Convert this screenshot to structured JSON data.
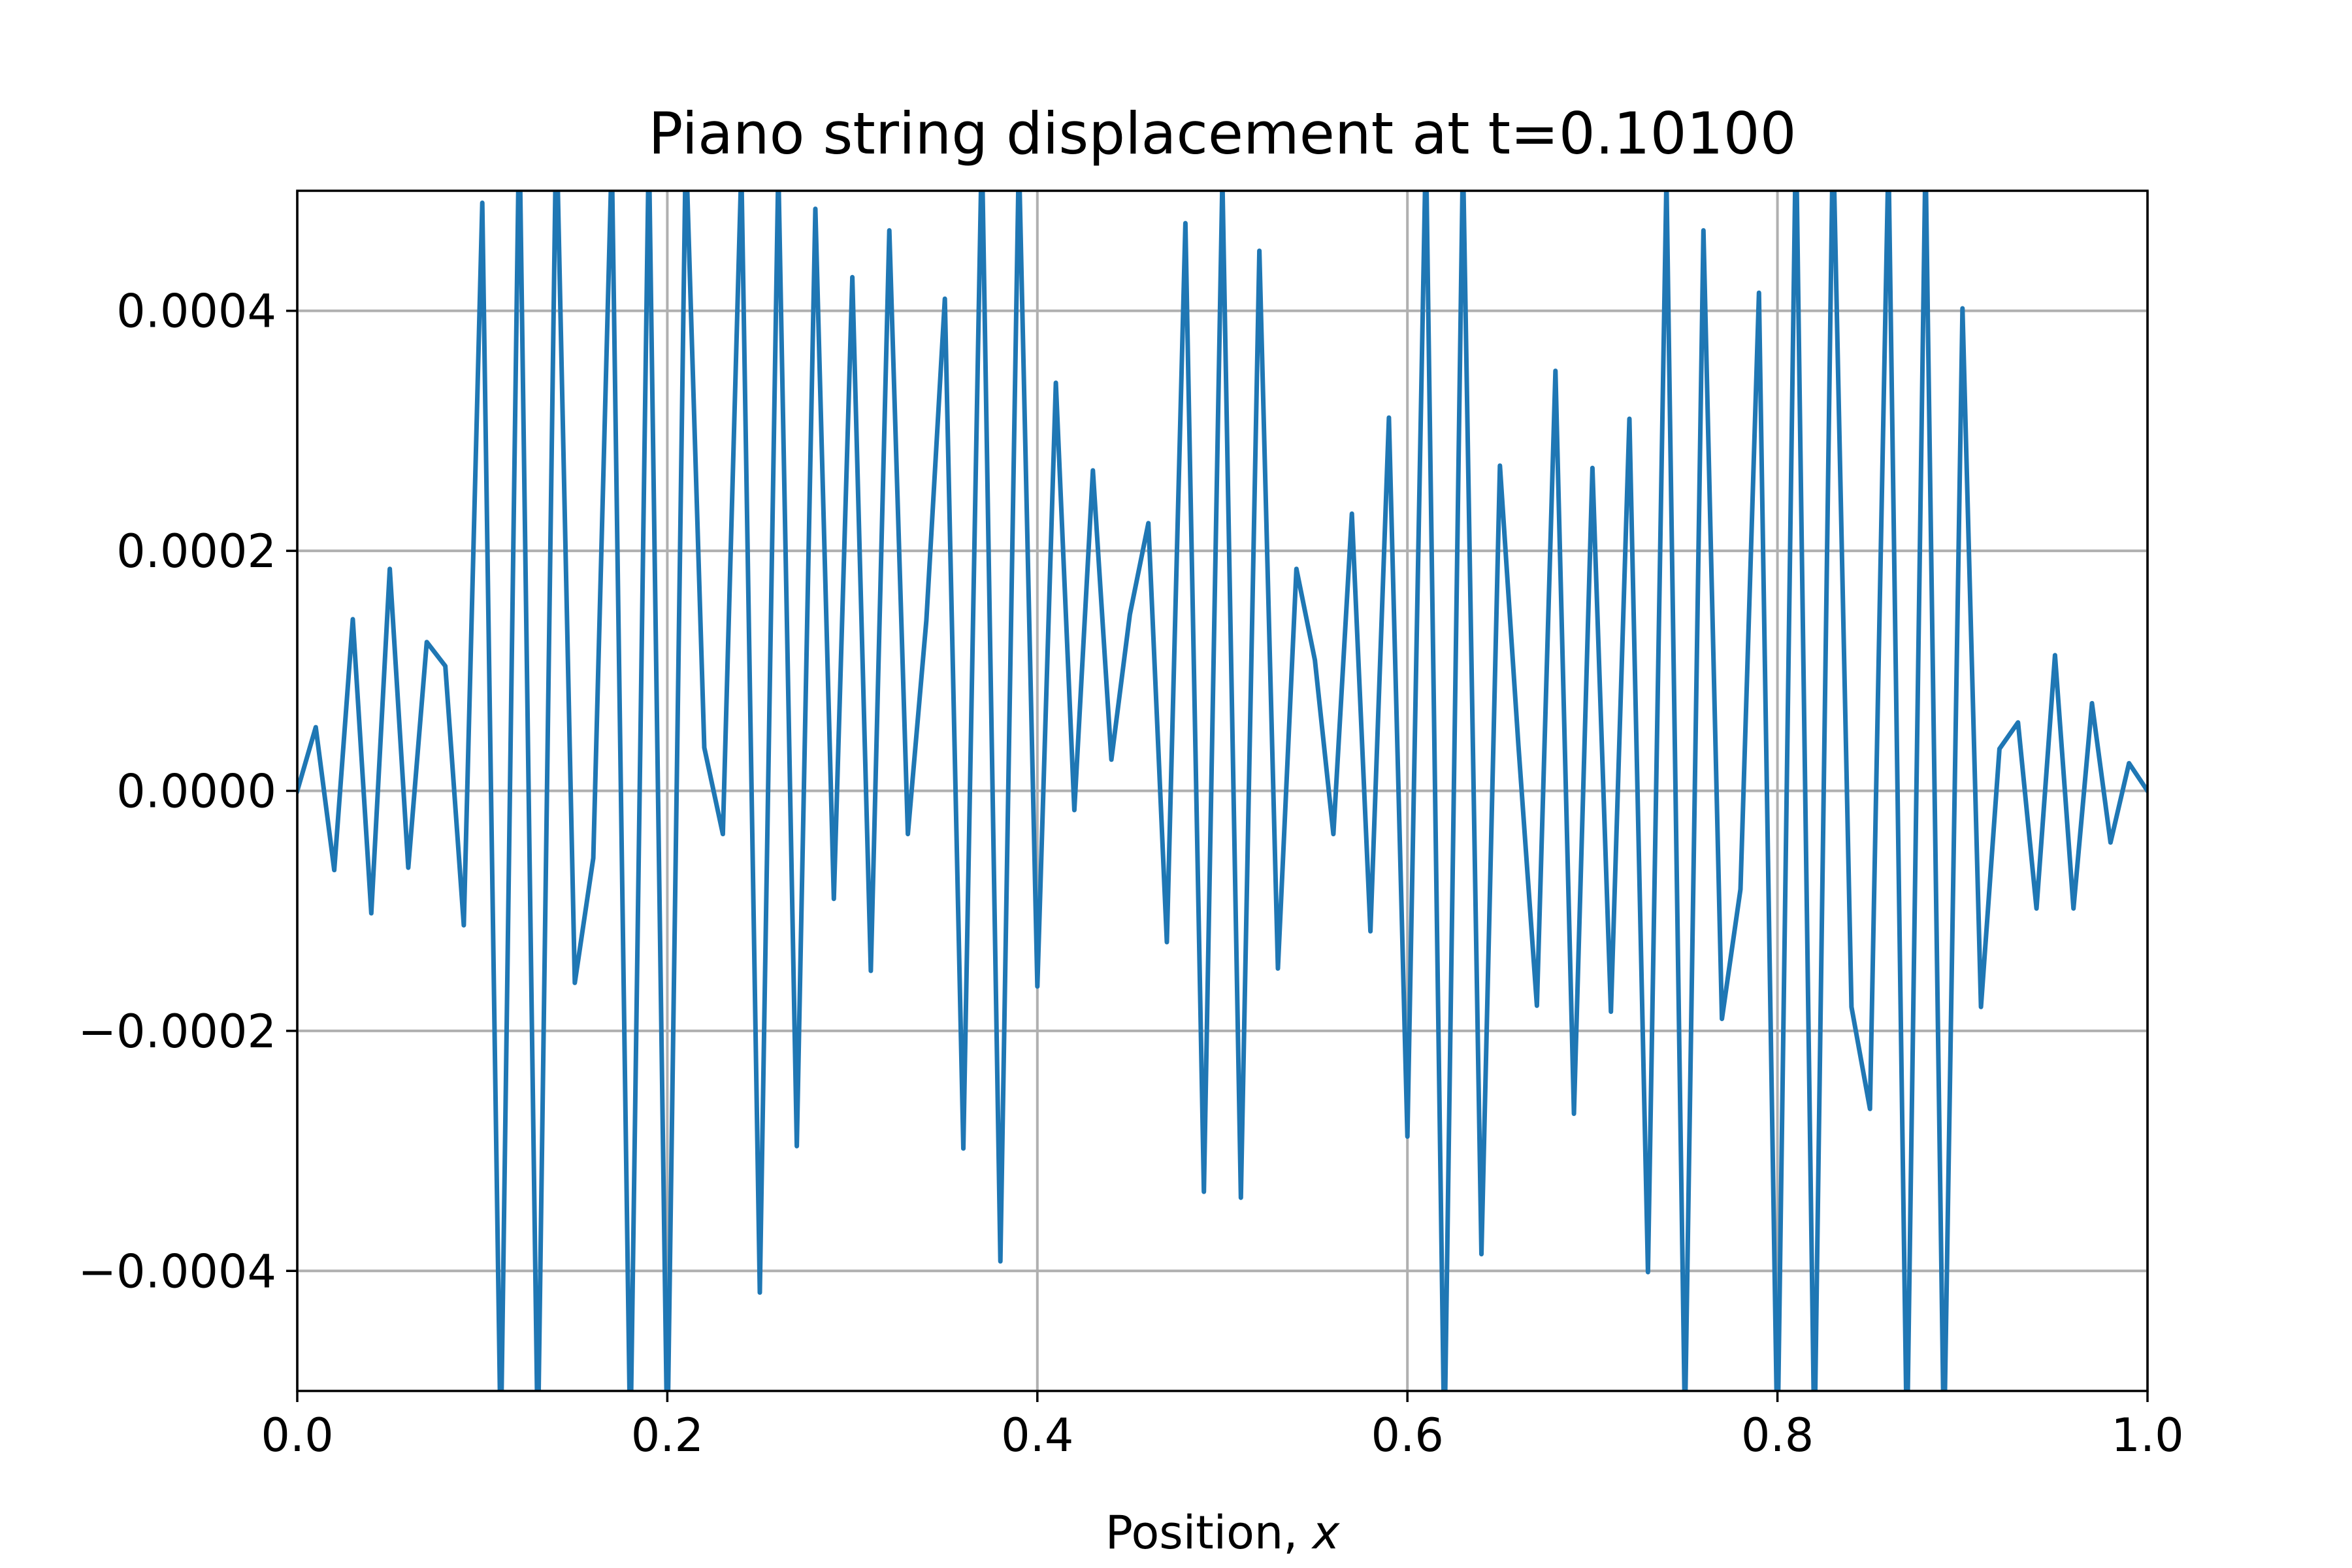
{
  "chart_data": {
    "type": "line",
    "title": "Piano string displacement at t=0.10100",
    "xlabel": "Position, ",
    "xlabel_var": "x",
    "ylabel": "",
    "xlim": [
      0.0,
      1.0
    ],
    "ylim": [
      -0.0005,
      0.0005
    ],
    "xticks": [
      0.0,
      0.2,
      0.4,
      0.6,
      0.8,
      1.0
    ],
    "xtick_labels": [
      "0.0",
      "0.2",
      "0.4",
      "0.6",
      "0.8",
      "1.0"
    ],
    "yticks": [
      -0.0004,
      -0.0002,
      0.0,
      0.0002,
      0.0004
    ],
    "ytick_labels": [
      "−0.0004",
      "−0.0002",
      "0.0000",
      "0.0002",
      "0.0004"
    ],
    "grid": true,
    "color": "#1f77b4",
    "x": [
      0.0,
      0.01,
      0.02,
      0.03,
      0.04,
      0.05,
      0.06,
      0.07,
      0.08,
      0.09,
      0.1,
      0.11,
      0.12,
      0.13,
      0.14,
      0.15,
      0.16,
      0.17,
      0.18,
      0.19,
      0.2,
      0.21,
      0.22,
      0.23,
      0.24,
      0.25,
      0.26,
      0.27,
      0.28,
      0.29,
      0.3,
      0.31,
      0.32,
      0.33,
      0.34,
      0.35,
      0.36,
      0.37,
      0.38,
      0.39,
      0.4,
      0.41,
      0.42,
      0.43,
      0.44,
      0.45,
      0.46,
      0.47,
      0.48,
      0.49,
      0.5,
      0.51,
      0.52,
      0.53,
      0.54,
      0.55,
      0.56,
      0.57,
      0.58,
      0.59,
      0.6,
      0.61,
      0.62,
      0.63,
      0.64,
      0.65,
      0.66,
      0.67,
      0.68,
      0.69,
      0.7,
      0.71,
      0.72,
      0.73,
      0.74,
      0.75,
      0.76,
      0.77,
      0.78,
      0.79,
      0.8,
      0.81,
      0.82,
      0.83,
      0.84,
      0.85,
      0.86,
      0.87,
      0.88,
      0.89,
      0.9,
      0.91,
      0.92,
      0.93,
      0.94,
      0.95,
      0.96,
      0.97,
      0.98,
      0.99,
      1.0
    ],
    "y": [
      0.0,
      5.3e-05,
      -6.6e-05,
      0.000143,
      -0.000102,
      0.000185,
      -6.4e-05,
      0.000124,
      0.000104,
      -0.000112,
      0.00049,
      -0.00055,
      0.00056,
      -0.00055,
      0.00056,
      -0.00016,
      -5.6e-05,
      0.00053,
      -0.00055,
      0.00054,
      -0.00055,
      0.00054,
      3.6e-05,
      -3.6e-05,
      0.00052,
      -0.000418,
      0.00052,
      -0.000296,
      0.000485,
      -9e-05,
      0.000428,
      -0.00015,
      0.000467,
      -3.6e-05,
      0.000142,
      0.00041,
      -0.000298,
      0.00054,
      -0.000392,
      0.00053,
      -0.000163,
      0.00034,
      -1.6e-05,
      0.000267,
      2.6e-05,
      0.000147,
      0.000223,
      -0.000126,
      0.000473,
      -0.000334,
      0.00051,
      -0.000339,
      0.00045,
      -0.000148,
      0.000185,
      0.000109,
      -3.6e-05,
      0.000231,
      -0.000117,
      0.000311,
      -0.000288,
      0.00054,
      -0.00055,
      0.00053,
      -0.000386,
      0.000271,
      3.8e-05,
      -0.000179,
      0.00035,
      -0.000269,
      0.000269,
      -0.000184,
      0.00031,
      -0.000401,
      0.00051,
      -0.00053,
      0.000467,
      -0.00019,
      -8.2e-05,
      0.000415,
      -0.00055,
      0.00055,
      -0.00055,
      0.00055,
      -0.00018,
      -0.000265,
      0.00053,
      -0.00055,
      0.00053,
      -0.00055,
      0.000402,
      -0.00018,
      3.5e-05,
      5.7e-05,
      -9.8e-05,
      0.000113,
      -9.8e-05,
      7.3e-05,
      -4.3e-05,
      2.3e-05,
      0.0
    ]
  }
}
